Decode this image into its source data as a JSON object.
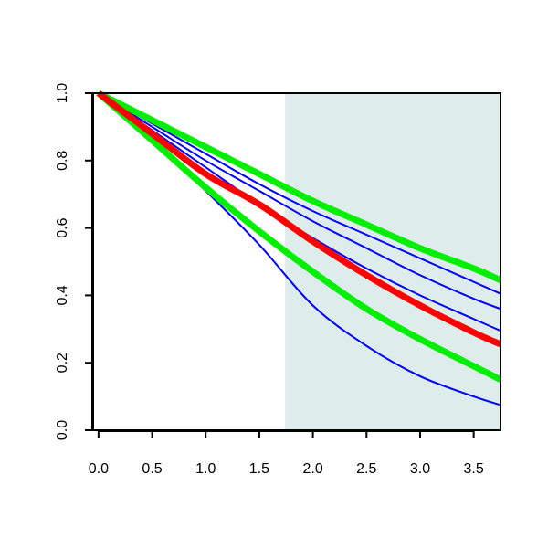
{
  "chart_data": {
    "type": "line",
    "title": "",
    "xlabel": "",
    "ylabel": "",
    "xlim": [
      -0.05,
      3.75
    ],
    "ylim": [
      0.0,
      1.0
    ],
    "x_ticks": [
      0.0,
      0.5,
      1.0,
      1.5,
      2.0,
      2.5,
      3.0,
      3.5
    ],
    "x_tick_labels": [
      "0.0",
      "0.5",
      "1.0",
      "1.5",
      "2.0",
      "2.5",
      "3.0",
      "3.5"
    ],
    "y_ticks": [
      0.0,
      0.2,
      0.4,
      0.6,
      0.8,
      1.0
    ],
    "y_tick_labels": [
      "0.0",
      "0.2",
      "0.4",
      "0.6",
      "0.8",
      "1.0"
    ],
    "shaded_region": {
      "x_start": 1.74,
      "x_end": 3.75,
      "color": "#deecec"
    },
    "grid": false,
    "legend": "none",
    "series": [
      {
        "color": "#0000ff",
        "width": "thin",
        "x": [
          0.0,
          0.5,
          1.0,
          1.5,
          2.0,
          2.5,
          3.0,
          3.5,
          3.75
        ],
        "y": [
          1.0,
          0.86,
          0.71,
          0.55,
          0.37,
          0.25,
          0.16,
          0.1,
          0.075
        ]
      },
      {
        "color": "#0000ff",
        "width": "thin",
        "x": [
          0.0,
          0.5,
          1.0,
          1.5,
          2.0,
          2.5,
          3.0,
          3.5,
          3.75
        ],
        "y": [
          1.0,
          0.89,
          0.78,
          0.67,
          0.57,
          0.48,
          0.4,
          0.33,
          0.295
        ]
      },
      {
        "color": "#0000ff",
        "width": "thin",
        "x": [
          0.0,
          0.5,
          1.0,
          1.5,
          2.0,
          2.5,
          3.0,
          3.5,
          3.75
        ],
        "y": [
          1.0,
          0.9,
          0.8,
          0.71,
          0.62,
          0.54,
          0.46,
          0.39,
          0.36
        ]
      },
      {
        "color": "#0000ff",
        "width": "thin",
        "x": [
          0.0,
          0.5,
          1.0,
          1.5,
          2.0,
          2.5,
          3.0,
          3.5,
          3.75
        ],
        "y": [
          1.0,
          0.91,
          0.82,
          0.73,
          0.65,
          0.58,
          0.51,
          0.44,
          0.405
        ]
      },
      {
        "color": "#00ee00",
        "width": "thick",
        "x": [
          0.0,
          0.5,
          1.0,
          1.5,
          2.0,
          2.5,
          3.0,
          3.5,
          3.75
        ],
        "y": [
          1.0,
          0.86,
          0.72,
          0.59,
          0.47,
          0.36,
          0.27,
          0.19,
          0.15
        ]
      },
      {
        "color": "#00ee00",
        "width": "thick",
        "x": [
          0.0,
          0.5,
          1.0,
          1.5,
          2.0,
          2.5,
          3.0,
          3.5,
          3.75
        ],
        "y": [
          1.0,
          0.92,
          0.84,
          0.76,
          0.68,
          0.61,
          0.54,
          0.48,
          0.445
        ]
      },
      {
        "color": "#ff0000",
        "width": "thick",
        "x": [
          0.0,
          0.5,
          1.0,
          1.5,
          2.0,
          2.5,
          3.0,
          3.5,
          3.75
        ],
        "y": [
          1.0,
          0.88,
          0.76,
          0.67,
          0.56,
          0.46,
          0.37,
          0.29,
          0.255
        ]
      }
    ]
  }
}
